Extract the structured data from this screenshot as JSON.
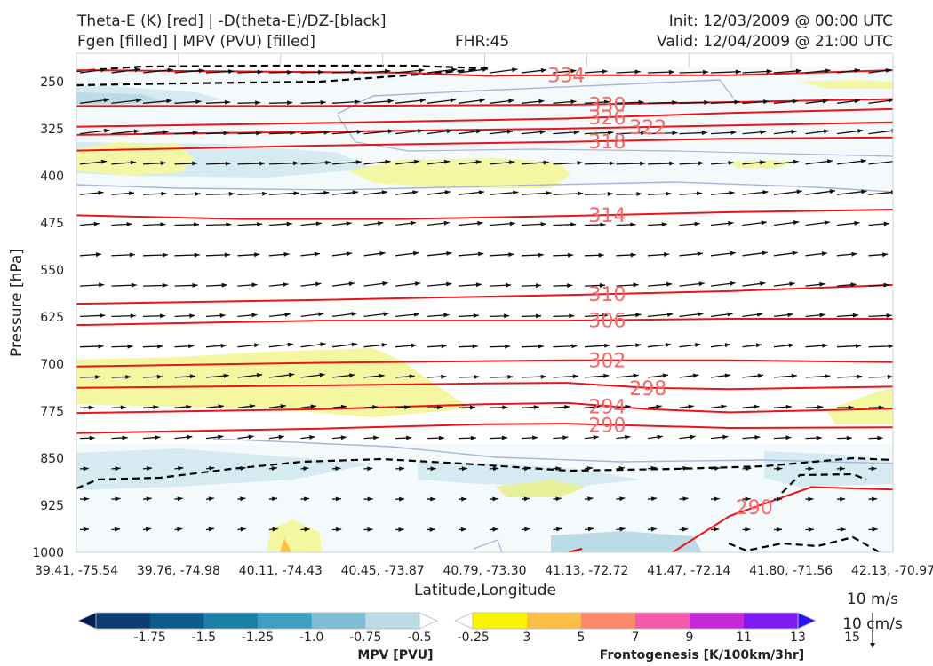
{
  "header": {
    "title_line1": "Theta-E (K) [red] | -D(theta-E)/DZ-[black]",
    "title_line2": "Fgen [filled] | MPV (PVU) [filled]",
    "fhr": "FHR:45",
    "init": "Init: 12/03/2009 @ 00:00 UTC",
    "valid": "Valid: 12/04/2009 @ 21:00 UTC"
  },
  "chart_data": {
    "type": "cross-section",
    "ylabel": "Pressure [hPa]",
    "xlabel": "Latitude,Longitude",
    "y_ticks": [
      250,
      325,
      400,
      475,
      550,
      625,
      700,
      775,
      850,
      925,
      1000
    ],
    "x_ticks": [
      "39.41, -75.54",
      "39.76, -74.98",
      "40.11, -74.43",
      "40.45, -73.87",
      "40.79, -73.30",
      "41.13, -72.72",
      "41.47, -72.14",
      "41.80, -71.56",
      "42.13, -70.97"
    ],
    "ylim": [
      1000,
      205
    ],
    "theta_e_contours": [
      {
        "label": "334",
        "label_x": 6.0,
        "points": [
          [
            0,
            232
          ],
          [
            4,
            236
          ],
          [
            5,
            241
          ],
          [
            6,
            240
          ],
          [
            7,
            240
          ],
          [
            8,
            240
          ],
          [
            10,
            232
          ]
        ]
      },
      {
        "label": "330",
        "label_x": 6.5,
        "points": [
          [
            0,
            289
          ],
          [
            3,
            289
          ],
          [
            6,
            287
          ],
          [
            8,
            283
          ],
          [
            10,
            278
          ]
        ]
      },
      {
        "label": "326",
        "label_x": 6.5,
        "points": [
          [
            0,
            322
          ],
          [
            3,
            316
          ],
          [
            6,
            309
          ],
          [
            8,
            300
          ],
          [
            10,
            294
          ]
        ]
      },
      {
        "label": "322",
        "label_x": 7.0,
        "points": [
          [
            0,
            335
          ],
          [
            3,
            330
          ],
          [
            6,
            325
          ],
          [
            8,
            320
          ],
          [
            10,
            315
          ]
        ]
      },
      {
        "label": "318",
        "label_x": 6.5,
        "points": [
          [
            0,
            360
          ],
          [
            3,
            352
          ],
          [
            6,
            346
          ],
          [
            8,
            341
          ],
          [
            10,
            339
          ]
        ]
      },
      {
        "label": "314",
        "label_x": 6.5,
        "points": [
          [
            0,
            463
          ],
          [
            2,
            469
          ],
          [
            4,
            469
          ],
          [
            6,
            464
          ],
          [
            8,
            458
          ],
          [
            10,
            454
          ]
        ]
      },
      {
        "label": "310",
        "label_x": 6.5,
        "points": [
          [
            0,
            604
          ],
          [
            3,
            598
          ],
          [
            6,
            590
          ],
          [
            8,
            584
          ],
          [
            10,
            574
          ]
        ]
      },
      {
        "label": "306",
        "label_x": 6.5,
        "points": [
          [
            0,
            638
          ],
          [
            3,
            631
          ],
          [
            6,
            631
          ],
          [
            8,
            628
          ],
          [
            10,
            628
          ]
        ]
      },
      {
        "label": "302",
        "label_x": 6.5,
        "points": [
          [
            0,
            704
          ],
          [
            3,
            698
          ],
          [
            6,
            694
          ],
          [
            8,
            694
          ],
          [
            10,
            697
          ]
        ]
      },
      {
        "label": "298",
        "label_x": 7.0,
        "points": [
          [
            0,
            738
          ],
          [
            3,
            734
          ],
          [
            5,
            731
          ],
          [
            6,
            730
          ],
          [
            7,
            738
          ],
          [
            8,
            740
          ],
          [
            10,
            736
          ]
        ]
      },
      {
        "label": "294",
        "label_x": 6.5,
        "points": [
          [
            0,
            778
          ],
          [
            3,
            772
          ],
          [
            5,
            764
          ],
          [
            6,
            762
          ],
          [
            7,
            772
          ],
          [
            8,
            777
          ],
          [
            10,
            771
          ]
        ]
      },
      {
        "label": "290",
        "label_x": 6.5,
        "points": [
          [
            0,
            810
          ],
          [
            3,
            803
          ],
          [
            5,
            796
          ],
          [
            6,
            795
          ],
          [
            8,
            802
          ],
          [
            10,
            801
          ]
        ]
      },
      {
        "label": "290",
        "label_x": 8.3,
        "points": [
          [
            7.3,
            1000
          ],
          [
            8.0,
            942
          ],
          [
            9.0,
            896
          ],
          [
            10,
            900
          ]
        ]
      }
    ],
    "colorbars": [
      {
        "label": "MPV [PVU]",
        "ticks": [
          "-1.75",
          "-1.5",
          "-1.25",
          "-1.0",
          "-0.75",
          "-0.5",
          "-0.25"
        ],
        "colors": [
          "#041d58",
          "#0b3c72",
          "#0f5a8c",
          "#1c7fa6",
          "#3e9fc0",
          "#7fbdd4",
          "#bbdce6",
          "#ffffff"
        ]
      },
      {
        "label": "Frontogenesis [K/100km/3hr]",
        "ticks": [
          "3",
          "5",
          "7",
          "9",
          "11",
          "13",
          "15"
        ],
        "colors": [
          "#ffffff",
          "#fbf400",
          "#fbbf45",
          "#fa8a6a",
          "#f25aaa",
          "#c728d7",
          "#7c1cf0",
          "#2a14f5"
        ]
      }
    ],
    "vector_key": [
      "10 m/s",
      "10 cm/s"
    ]
  }
}
